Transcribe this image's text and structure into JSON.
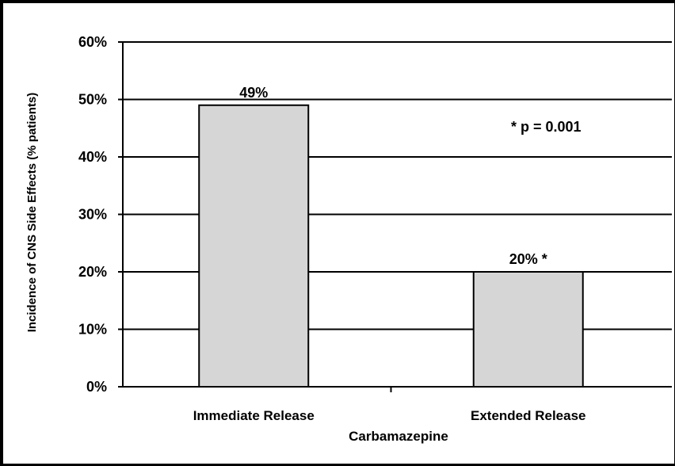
{
  "chart_data": {
    "type": "bar",
    "categories": [
      "Immediate Release",
      "Extended Release"
    ],
    "values": [
      49,
      20
    ],
    "data_labels": [
      "49%",
      "20% *"
    ],
    "xlabel": "Carbamazepine",
    "ylabel": "Incidence of CNS Side Effects (% patients)",
    "ylim": [
      0,
      60
    ],
    "yticks": [
      0,
      10,
      20,
      30,
      40,
      50,
      60
    ],
    "ytick_labels": [
      "0%",
      "10%",
      "20%",
      "30%",
      "40%",
      "50%",
      "60%"
    ],
    "annotation": "* p = 0.001",
    "grid": true,
    "bar_color": "#d6d6d6",
    "bar_edge_color": "#000000"
  }
}
